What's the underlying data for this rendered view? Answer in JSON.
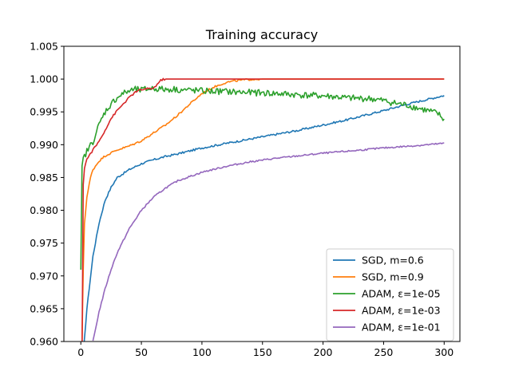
{
  "chart_data": {
    "type": "line",
    "title": "Training accuracy",
    "xlabel": "",
    "ylabel": "",
    "xlim": [
      -14,
      313
    ],
    "ylim": [
      0.96,
      1.005
    ],
    "x_ticks": [
      0,
      50,
      100,
      150,
      200,
      250,
      300
    ],
    "x_tick_labels": [
      "0",
      "50",
      "100",
      "150",
      "200",
      "250",
      "300"
    ],
    "y_ticks": [
      0.96,
      0.965,
      0.97,
      0.975,
      0.98,
      0.985,
      0.99,
      0.995,
      1.0,
      1.005
    ],
    "y_tick_labels": [
      "0.960",
      "0.965",
      "0.970",
      "0.975",
      "0.980",
      "0.985",
      "0.990",
      "0.995",
      "1.000",
      "1.005"
    ],
    "grid": false,
    "legend_position": "lower-right",
    "series": [
      {
        "name": "SGD, m=0.6",
        "color": "#1f77b4",
        "x": [
          2,
          5,
          10,
          15,
          20,
          25,
          30,
          40,
          50,
          60,
          70,
          80,
          100,
          120,
          150,
          180,
          200,
          220,
          250,
          270,
          300
        ],
        "y": [
          0.958,
          0.965,
          0.973,
          0.978,
          0.9815,
          0.9835,
          0.985,
          0.9862,
          0.9871,
          0.9877,
          0.9882,
          0.9886,
          0.9895,
          0.9902,
          0.9912,
          0.9922,
          0.993,
          0.9938,
          0.9952,
          0.9962,
          0.9975
        ],
        "noise": 0.00015
      },
      {
        "name": "SGD, m=0.9",
        "color": "#ff7f0e",
        "x": [
          1,
          2,
          3,
          5,
          8,
          10,
          15,
          20,
          30,
          40,
          50,
          60,
          70,
          80,
          90,
          100,
          110,
          120,
          130,
          140,
          150,
          200,
          250,
          300
        ],
        "y": [
          0.96,
          0.971,
          0.978,
          0.982,
          0.985,
          0.9862,
          0.9875,
          0.9883,
          0.9892,
          0.9898,
          0.9906,
          0.9918,
          0.993,
          0.9945,
          0.9962,
          0.9978,
          0.9988,
          0.9995,
          0.9998,
          0.99995,
          1.0,
          1.0,
          1.0,
          1.0
        ],
        "noise": 0.00015
      },
      {
        "name": "ADAM, ε=1e-05",
        "color": "#2ca02c",
        "x": [
          0,
          1,
          2,
          5,
          10,
          15,
          20,
          25,
          30,
          35,
          40,
          45,
          50,
          55,
          60,
          65,
          70,
          75,
          80,
          90,
          100,
          110,
          120,
          130,
          140,
          150,
          160,
          170,
          180,
          190,
          200,
          210,
          220,
          230,
          240,
          250,
          260,
          270,
          280,
          290,
          295,
          300
        ],
        "y": [
          0.9705,
          0.9865,
          0.9878,
          0.989,
          0.9905,
          0.993,
          0.995,
          0.9962,
          0.9972,
          0.9978,
          0.9982,
          0.9984,
          0.9983,
          0.9985,
          0.9986,
          0.9985,
          0.9984,
          0.9985,
          0.9984,
          0.9983,
          0.9982,
          0.99815,
          0.9981,
          0.998,
          0.99795,
          0.9979,
          0.9978,
          0.9977,
          0.9976,
          0.9975,
          0.99745,
          0.9973,
          0.9971,
          0.99705,
          0.997,
          0.9967,
          0.9963,
          0.996,
          0.9955,
          0.995,
          0.9947,
          0.9938
        ],
        "noise": 0.0005
      },
      {
        "name": "ADAM, ε=1e-03",
        "color": "#d62728",
        "x": [
          1,
          2,
          3,
          5,
          10,
          15,
          20,
          25,
          30,
          35,
          40,
          45,
          50,
          55,
          60,
          63,
          66,
          68,
          70,
          75,
          100,
          150,
          200,
          250,
          300
        ],
        "y": [
          0.958,
          0.984,
          0.9865,
          0.9878,
          0.9892,
          0.9905,
          0.9922,
          0.994,
          0.9952,
          0.9962,
          0.9972,
          0.998,
          0.9984,
          0.9985,
          0.9986,
          0.9992,
          0.9998,
          0.99995,
          1.0,
          1.0,
          1.0,
          1.0,
          1.0,
          1.0,
          1.0
        ],
        "noise": 0.00015
      },
      {
        "name": "ADAM, ε=1e-01",
        "color": "#9467bd",
        "x": [
          10,
          15,
          20,
          25,
          30,
          40,
          50,
          60,
          70,
          80,
          100,
          120,
          140,
          160,
          180,
          200,
          220,
          250,
          280,
          300
        ],
        "y": [
          0.96,
          0.9645,
          0.968,
          0.971,
          0.9735,
          0.9772,
          0.98,
          0.982,
          0.9834,
          0.9845,
          0.9858,
          0.9867,
          0.9874,
          0.9879,
          0.9883,
          0.9887,
          0.989,
          0.9895,
          0.9899,
          0.9902
        ],
        "noise": 0.00012
      }
    ]
  }
}
